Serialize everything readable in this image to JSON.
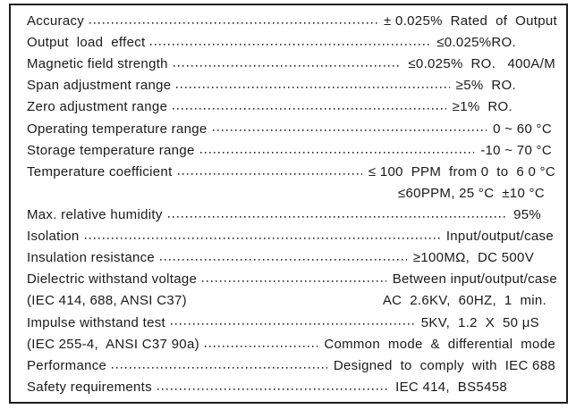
{
  "document": {
    "kind": "specification-sheet"
  },
  "spec_rows": [
    {
      "label": "Accuracy",
      "value": "± 0.025%  Rated  of  Output",
      "leader": true,
      "value_pad": 0
    },
    {
      "label": "Output  load  effect",
      "value": "≤0.025%RO.",
      "leader": true,
      "value_pad": 46
    },
    {
      "label": "Magnetic field strength",
      "value": "≤0.025%  RO.   400A/M",
      "leader": true,
      "value_pad": 2
    },
    {
      "label": "Span adjustment range",
      "value": "≥5%  RO.",
      "leader": true,
      "value_pad": 46
    },
    {
      "label": "Zero adjustment range",
      "value": "≥1%  RO.",
      "leader": true,
      "value_pad": 50
    },
    {
      "label": "Operating temperature range",
      "value": "0 ~ 60 °C",
      "leader": true,
      "value_pad": 6
    },
    {
      "label": "Storage temperature range",
      "value": "-10 ~ 70 °C",
      "leader": true,
      "value_pad": 6
    },
    {
      "label": "Temperature coefficient",
      "value": "≤ 100  PPM  from 0  to  6 0 °C",
      "leader": true,
      "value_pad": 2
    },
    {
      "label": "",
      "value": "≤60PPM, 25 °C  ±10 °C",
      "leader": false,
      "value_pad": 14
    },
    {
      "label": "Max. relative humidity",
      "value": "95%",
      "leader": true,
      "value_pad": 18
    },
    {
      "label": "Isolation",
      "value": "Input/output/case",
      "leader": true,
      "value_pad": 4
    },
    {
      "label": "Insulation resistance",
      "value": "≥100MΩ,  DC 500V",
      "leader": true,
      "value_pad": 26
    },
    {
      "label": "Dielectric withstand voltage",
      "value": "Between input/output/case",
      "leader": true,
      "value_pad": 0
    },
    {
      "label": "(IEC 414, 688, ANSI C37)",
      "value": "AC  2.6KV,  60HZ,  1  min.",
      "leader": false,
      "value_pad": 12
    },
    {
      "label": "Impulse withstand test",
      "value": "5KV,  1.2  X  50 μS",
      "leader": true,
      "value_pad": 20
    },
    {
      "label": "(IEC 255-4,  ANSI C37 90a)",
      "value": "Common  mode  &  differential  mode",
      "leader": true,
      "value_pad": 2
    },
    {
      "label": "Performance",
      "value": "Designed  to  comply  with  IEC 688",
      "leader": true,
      "value_pad": 2
    },
    {
      "label": "Safety requirements",
      "value": "IEC 414,  BS5458",
      "leader": true,
      "value_pad": 56
    }
  ]
}
